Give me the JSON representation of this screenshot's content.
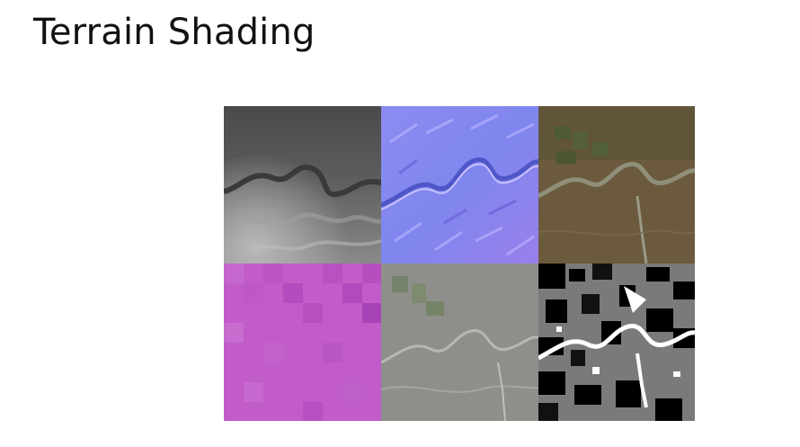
{
  "slide": {
    "title": "Terrain Shading"
  },
  "tiles": [
    {
      "icon": "heightmap-image"
    },
    {
      "icon": "normal-map-image"
    },
    {
      "icon": "satellite-albedo-image"
    },
    {
      "icon": "low-resolution-mask-image"
    },
    {
      "icon": "desaturated-overlay-image"
    },
    {
      "icon": "binary-classification-image"
    }
  ],
  "colors": {
    "background": "#ffffff",
    "title_text": "#111111"
  }
}
